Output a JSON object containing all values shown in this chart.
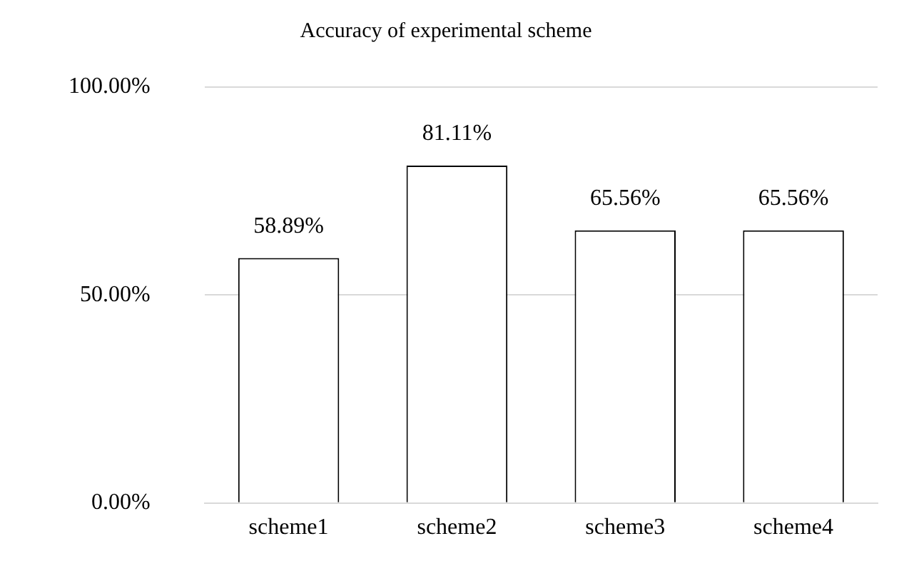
{
  "chart_data": {
    "type": "bar",
    "title": "Accuracy of experimental scheme",
    "categories": [
      "scheme1",
      "scheme2",
      "scheme3",
      "scheme4"
    ],
    "values": [
      58.89,
      81.11,
      65.56,
      65.56
    ],
    "value_labels": [
      "58.89%",
      "81.11%",
      "65.56%",
      "65.56%"
    ],
    "color": "#ffffff",
    "ylim": [
      0,
      100
    ],
    "yticks": [
      {
        "value": 0,
        "label": "0.00%"
      },
      {
        "value": 50,
        "label": "50.00%"
      },
      {
        "value": 100,
        "label": "100.00%"
      }
    ],
    "grid": "y",
    "legend": false
  }
}
